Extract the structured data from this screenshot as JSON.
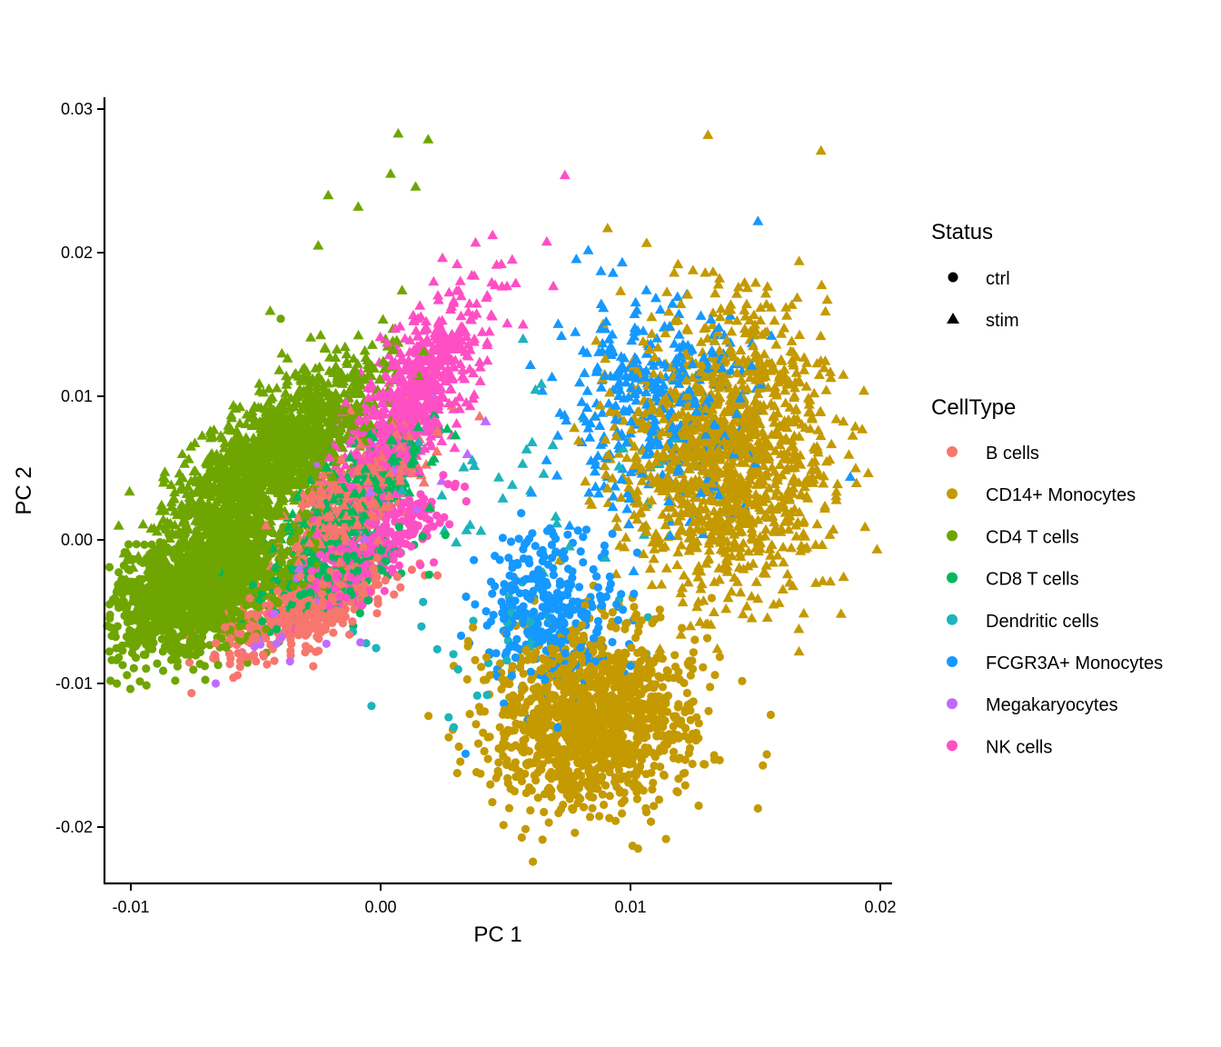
{
  "chart_data": {
    "type": "scatter",
    "title": "",
    "xlabel": "PC 1",
    "ylabel": "PC 2",
    "xlim": [
      -0.011,
      0.0205
    ],
    "ylim": [
      -0.024,
      0.031
    ],
    "x_ticks": [
      -0.01,
      0.0,
      0.01,
      0.02
    ],
    "x_tick_labels": [
      "-0.01",
      "0.00",
      "0.01",
      "0.02"
    ],
    "y_ticks": [
      -0.02,
      -0.01,
      0.0,
      0.01,
      0.02,
      0.03
    ],
    "y_tick_labels": [
      "-0.02",
      "-0.01",
      "0.00",
      "0.01",
      "0.02",
      "0.03"
    ],
    "grid": false,
    "legend_position": "right",
    "legends": [
      {
        "title": "Status",
        "entries": [
          {
            "label": "ctrl",
            "shape": "circle"
          },
          {
            "label": "stim",
            "shape": "triangle"
          }
        ]
      },
      {
        "title": "CellType",
        "entries": [
          {
            "label": "B cells",
            "color": "#F8766D"
          },
          {
            "label": "CD14+ Monocytes",
            "color": "#C49A00"
          },
          {
            "label": "CD4 T cells",
            "color": "#6FA500"
          },
          {
            "label": "CD8 T cells",
            "color": "#00B85C"
          },
          {
            "label": "Dendritic cells",
            "color": "#1DB4BC"
          },
          {
            "label": "FCGR3A+ Monocytes",
            "color": "#1598FF"
          },
          {
            "label": "Megakaryocytes",
            "color": "#C06BFF"
          },
          {
            "label": "NK cells",
            "color": "#FF4FC4"
          }
        ]
      }
    ],
    "series_note": "Point clouds summarized per CellType x Status: center (data units), spread sd along major/minor axes, rotation in degrees, approximate point count.",
    "series": [
      {
        "celltype": "CD4 T cells",
        "status": "ctrl",
        "cx": -0.0072,
        "cy": -0.0035,
        "sd_major": 0.0022,
        "sd_minor": 0.0012,
        "angle_deg": 38,
        "n": 1500
      },
      {
        "celltype": "CD4 T cells",
        "status": "stim",
        "cx": -0.0045,
        "cy": 0.0055,
        "sd_major": 0.003,
        "sd_minor": 0.0011,
        "angle_deg": 50,
        "n": 1500
      },
      {
        "celltype": "B cells",
        "status": "ctrl",
        "cx": -0.003,
        "cy": -0.005,
        "sd_major": 0.0018,
        "sd_minor": 0.0008,
        "angle_deg": 30,
        "n": 420
      },
      {
        "celltype": "B cells",
        "status": "stim",
        "cx": -0.0012,
        "cy": 0.003,
        "sd_major": 0.0022,
        "sd_minor": 0.0009,
        "angle_deg": 55,
        "n": 350
      },
      {
        "celltype": "CD8 T cells",
        "status": "ctrl",
        "cx": -0.0022,
        "cy": -0.003,
        "sd_major": 0.0016,
        "sd_minor": 0.0008,
        "angle_deg": 35,
        "n": 200
      },
      {
        "celltype": "CD8 T cells",
        "status": "stim",
        "cx": -0.001,
        "cy": 0.003,
        "sd_major": 0.002,
        "sd_minor": 0.0009,
        "angle_deg": 55,
        "n": 320
      },
      {
        "celltype": "NK cells",
        "status": "ctrl",
        "cx": -0.0002,
        "cy": -0.0005,
        "sd_major": 0.0018,
        "sd_minor": 0.0007,
        "angle_deg": 45,
        "n": 260
      },
      {
        "celltype": "NK cells",
        "status": "stim",
        "cx": 0.0012,
        "cy": 0.0095,
        "sd_major": 0.003,
        "sd_minor": 0.0009,
        "angle_deg": 65,
        "n": 700
      },
      {
        "celltype": "Megakaryocytes",
        "status": "ctrl",
        "cx": -0.003,
        "cy": -0.005,
        "sd_major": 0.002,
        "sd_minor": 0.001,
        "angle_deg": 30,
        "n": 20
      },
      {
        "celltype": "Megakaryocytes",
        "status": "stim",
        "cx": 0.0005,
        "cy": 0.004,
        "sd_major": 0.0025,
        "sd_minor": 0.0012,
        "angle_deg": 50,
        "n": 25
      },
      {
        "celltype": "Dendritic cells",
        "status": "ctrl",
        "cx": 0.0045,
        "cy": -0.008,
        "sd_major": 0.0025,
        "sd_minor": 0.0015,
        "angle_deg": 10,
        "n": 30
      },
      {
        "celltype": "Dendritic cells",
        "status": "stim",
        "cx": 0.006,
        "cy": 0.004,
        "sd_major": 0.003,
        "sd_minor": 0.002,
        "angle_deg": 20,
        "n": 35
      },
      {
        "celltype": "FCGR3A+ Monocytes",
        "status": "ctrl",
        "cx": 0.0068,
        "cy": -0.0048,
        "sd_major": 0.0014,
        "sd_minor": 0.002,
        "angle_deg": 0,
        "n": 330
      },
      {
        "celltype": "FCGR3A+ Monocytes",
        "status": "stim",
        "cx": 0.0108,
        "cy": 0.0095,
        "sd_major": 0.002,
        "sd_minor": 0.0025,
        "angle_deg": 0,
        "n": 380
      },
      {
        "celltype": "CD14+ Monocytes",
        "status": "ctrl",
        "cx": 0.0085,
        "cy": -0.0125,
        "sd_major": 0.002,
        "sd_minor": 0.0022,
        "angle_deg": -20,
        "n": 1300
      },
      {
        "celltype": "CD14+ Monocytes",
        "status": "stim",
        "cx": 0.0138,
        "cy": 0.006,
        "sd_major": 0.002,
        "sd_minor": 0.0035,
        "angle_deg": 0,
        "n": 1300
      }
    ],
    "notable_points": [
      {
        "celltype": "CD4 T cells",
        "status": "stim",
        "x": 0.0007,
        "y": 0.0283
      },
      {
        "celltype": "CD4 T cells",
        "status": "stim",
        "x": 0.0019,
        "y": 0.0279
      },
      {
        "celltype": "CD4 T cells",
        "status": "stim",
        "x": 0.0004,
        "y": 0.0255
      },
      {
        "celltype": "CD4 T cells",
        "status": "stim",
        "x": 0.0014,
        "y": 0.0246
      },
      {
        "celltype": "CD4 T cells",
        "status": "stim",
        "x": -0.0021,
        "y": 0.024
      },
      {
        "celltype": "CD4 T cells",
        "status": "stim",
        "x": -0.0009,
        "y": 0.0232
      },
      {
        "celltype": "CD4 T cells",
        "status": "stim",
        "x": -0.0025,
        "y": 0.0205
      },
      {
        "celltype": "CD4 T cells",
        "status": "ctrl",
        "x": -0.004,
        "y": 0.0154
      },
      {
        "celltype": "CD4 T cells",
        "status": "ctrl",
        "x": -0.0098,
        "y": -0.0082
      },
      {
        "celltype": "CD14+ Monocytes",
        "status": "stim",
        "x": 0.0131,
        "y": 0.0282
      },
      {
        "celltype": "CD14+ Monocytes",
        "status": "stim",
        "x": 0.0119,
        "y": 0.0192
      },
      {
        "celltype": "CD14+ Monocytes",
        "status": "stim",
        "x": 0.018,
        "y": -0.0029
      },
      {
        "celltype": "CD14+ Monocytes",
        "status": "stim",
        "x": 0.019,
        "y": 0.0079
      },
      {
        "celltype": "CD14+ Monocytes",
        "status": "ctrl",
        "x": 0.0151,
        "y": -0.0187
      },
      {
        "celltype": "CD14+ Monocytes",
        "status": "ctrl",
        "x": 0.0103,
        "y": -0.0215
      },
      {
        "celltype": "FCGR3A+ Monocytes",
        "status": "stim",
        "x": 0.0151,
        "y": 0.0222
      },
      {
        "celltype": "FCGR3A+ Monocytes",
        "status": "stim",
        "x": 0.0188,
        "y": 0.0044
      },
      {
        "celltype": "FCGR3A+ Monocytes",
        "status": "stim",
        "x": 0.0093,
        "y": 0.0186
      },
      {
        "celltype": "FCGR3A+ Monocytes",
        "status": "ctrl",
        "x": 0.0034,
        "y": -0.0149
      },
      {
        "celltype": "Megakaryocytes",
        "status": "ctrl",
        "x": -0.0066,
        "y": -0.01
      },
      {
        "celltype": "B cells",
        "status": "ctrl",
        "x": -0.0059,
        "y": -0.0096
      },
      {
        "celltype": "B cells",
        "status": "ctrl",
        "x": -0.0027,
        "y": -0.0088
      },
      {
        "celltype": "NK cells",
        "status": "stim",
        "x": 0.0038,
        "y": 0.0207
      },
      {
        "celltype": "NK cells",
        "status": "stim",
        "x": 0.0057,
        "y": 0.015
      },
      {
        "celltype": "Dendritic cells",
        "status": "stim",
        "x": 0.0057,
        "y": 0.014
      }
    ]
  }
}
